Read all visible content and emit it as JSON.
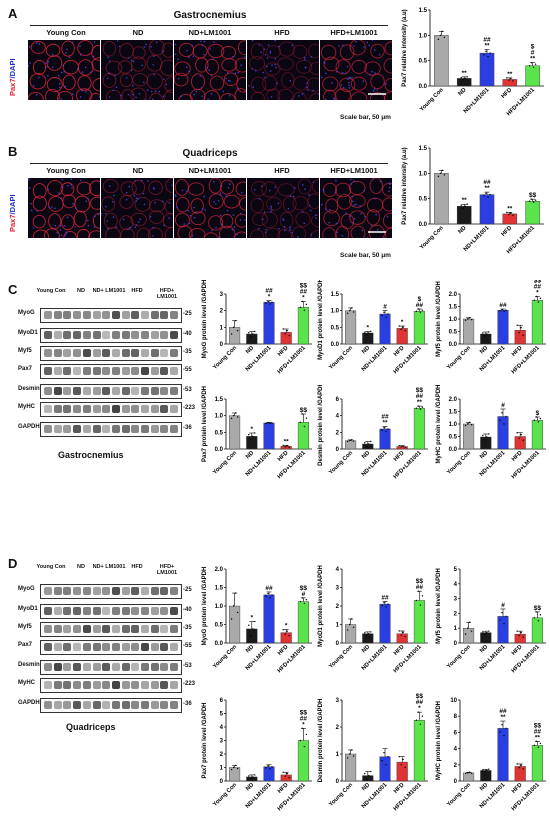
{
  "panels": {
    "A": {
      "letter": "A",
      "title": "Gastrocnemius",
      "stain": "Pax7/DAPI",
      "stain_red": "Pax7",
      "stain_blue": "DAPI",
      "scale": "Scale bar, 50 μm"
    },
    "B": {
      "letter": "B",
      "title": "Quadriceps",
      "stain": "Pax7/DAPI",
      "stain_red": "Pax7",
      "stain_blue": "DAPI",
      "scale": "Scale bar, 50 μm"
    },
    "C": {
      "letter": "C",
      "caption": "Gastrocnemius"
    },
    "D": {
      "letter": "D",
      "caption": "Quadriceps"
    }
  },
  "groups": [
    "Young Con",
    "ND",
    "ND+LM1001",
    "HFD",
    "HFD+LM1001"
  ],
  "blot": {
    "lanes": [
      "Young Con",
      "ND",
      "ND+ LM1001",
      "HFD",
      "HFD+ LM1001"
    ],
    "proteins": [
      "MyoG",
      "MyoD1",
      "Myf5",
      "Pax7",
      "Desmin",
      "MyHC",
      "GAPDH"
    ],
    "sizes": [
      "25",
      "40",
      "35",
      "55",
      "53",
      "223",
      "36"
    ]
  },
  "colors": {
    "young": "#a9a9a9",
    "nd": "#1a1a1a",
    "nd_lm": "#2b3fe0",
    "hfd": "#e03333",
    "hfd_lm": "#5be34b",
    "red_stain": "#e01b24",
    "blue_stain": "#2233cc"
  },
  "chart_data": [
    {
      "id": "A-pax7",
      "type": "bar",
      "categories": [
        "Young Con",
        "ND",
        "ND+LM1001",
        "HFD",
        "HFD+LM1001"
      ],
      "values": [
        1.0,
        0.15,
        0.65,
        0.13,
        0.4
      ],
      "errors": [
        0.08,
        0.03,
        0.07,
        0.03,
        0.06
      ],
      "ylabel": "Pax7 relative intensity (a.u)",
      "ylim": [
        0,
        1.5
      ],
      "yticks": [
        "0.0",
        "0.5",
        "1.0",
        "1.5"
      ],
      "annotations": [
        "",
        "**",
        "##|**",
        "**",
        "$|#|**"
      ]
    },
    {
      "id": "B-pax7",
      "type": "bar",
      "categories": [
        "Young Con",
        "ND",
        "ND+LM1001",
        "HFD",
        "HFD+LM1001"
      ],
      "values": [
        1.0,
        0.35,
        0.58,
        0.2,
        0.45
      ],
      "errors": [
        0.06,
        0.04,
        0.05,
        0.03,
        0.04
      ],
      "ylabel": "Pax7 relative intensity (a.u)",
      "ylim": [
        0,
        1.5
      ],
      "yticks": [
        "0.0",
        "0.5",
        "1.0",
        "1.5"
      ],
      "annotations": [
        "",
        "**",
        "##|**",
        "**",
        "$$"
      ]
    },
    {
      "id": "C-myog",
      "type": "bar",
      "categories": [
        "Young Con",
        "ND",
        "ND+LM1001",
        "HFD",
        "HFD+LM1001"
      ],
      "values": [
        1.0,
        0.6,
        2.5,
        0.7,
        2.2
      ],
      "errors": [
        0.4,
        0.15,
        0.1,
        0.2,
        0.35
      ],
      "ylabel": "MyoG protein level /GAPDH",
      "ylim": [
        0,
        3
      ],
      "yticks": [
        "0",
        "1",
        "2",
        "3"
      ],
      "annotations": [
        "",
        "",
        "##|*",
        "",
        "$$|##|*"
      ]
    },
    {
      "id": "C-myod1",
      "type": "bar",
      "categories": [
        "Young Con",
        "ND",
        "ND+LM1001",
        "HFD",
        "HFD+LM1001"
      ],
      "values": [
        1.0,
        0.33,
        0.9,
        0.47,
        0.98
      ],
      "errors": [
        0.08,
        0.05,
        0.1,
        0.07,
        0.07
      ],
      "ylabel": "MyoD1 protein level /GAPDH",
      "ylim": [
        0,
        1.5
      ],
      "yticks": [
        "0.0",
        "0.5",
        "1.0",
        "1.5"
      ],
      "annotations": [
        "",
        "*",
        "#",
        "*",
        "$|##"
      ]
    },
    {
      "id": "C-myf5",
      "type": "bar",
      "categories": [
        "Young Con",
        "ND",
        "ND+LM1001",
        "HFD",
        "HFD+LM1001"
      ],
      "values": [
        1.0,
        0.4,
        1.35,
        0.55,
        1.75
      ],
      "errors": [
        0.05,
        0.08,
        0.05,
        0.2,
        0.15
      ],
      "ylabel": "Myf5 protein level /GAPDH",
      "ylim": [
        0,
        2.0
      ],
      "yticks": [
        "0.0",
        "0.5",
        "1.0",
        "1.5",
        "2.0"
      ],
      "annotations": [
        "",
        "",
        "##",
        "",
        "$$|##|*"
      ]
    },
    {
      "id": "C-pax7",
      "type": "bar",
      "categories": [
        "Young Con",
        "ND",
        "ND+LM1001",
        "HFD",
        "HFD+LM1001"
      ],
      "values": [
        1.0,
        0.38,
        0.78,
        0.08,
        0.8
      ],
      "errors": [
        0.08,
        0.1,
        0.02,
        0.03,
        0.25
      ],
      "ylabel": "Pax7 protein level /GAPDH",
      "ylim": [
        0,
        1.5
      ],
      "yticks": [
        "0.0",
        "0.5",
        "1.0",
        "1.5"
      ],
      "annotations": [
        "",
        "*",
        "",
        "**",
        "$$"
      ]
    },
    {
      "id": "C-desmin",
      "type": "bar",
      "categories": [
        "Young Con",
        "ND",
        "ND+LM1001",
        "HFD",
        "HFD+LM1001"
      ],
      "values": [
        1.0,
        0.6,
        2.4,
        0.3,
        4.9
      ],
      "errors": [
        0.1,
        0.3,
        0.3,
        0.1,
        0.25
      ],
      "ylabel": "Desmin protein level /GAPDH",
      "ylim": [
        0,
        6
      ],
      "yticks": [
        "0",
        "2",
        "4",
        "6"
      ],
      "annotations": [
        "",
        "",
        "##|**",
        "",
        "$$|##|**"
      ]
    },
    {
      "id": "C-myhc",
      "type": "bar",
      "categories": [
        "Young Con",
        "ND",
        "ND+LM1001",
        "HFD",
        "HFD+LM1001"
      ],
      "values": [
        1.0,
        0.48,
        1.3,
        0.5,
        1.15
      ],
      "errors": [
        0.06,
        0.12,
        0.3,
        0.15,
        0.13
      ],
      "ylabel": "MyHC protein level /GAPDH",
      "ylim": [
        0,
        2.0
      ],
      "yticks": [
        "0.0",
        "0.5",
        "1.0",
        "1.5",
        "2.0"
      ],
      "annotations": [
        "",
        "",
        "#",
        "",
        "$"
      ]
    },
    {
      "id": "D-myog",
      "type": "bar",
      "categories": [
        "Young Con",
        "ND",
        "ND+LM1001",
        "HFD",
        "HFD+LM1001"
      ],
      "values": [
        1.0,
        0.38,
        1.3,
        0.28,
        1.12
      ],
      "errors": [
        0.35,
        0.2,
        0.08,
        0.08,
        0.1
      ],
      "ylabel": "MyoG protein level /GAPDH",
      "ylim": [
        0,
        2.0
      ],
      "yticks": [
        "0.0",
        "0.5",
        "1.0",
        "1.5",
        "2.0"
      ],
      "annotations": [
        "",
        "*",
        "##",
        "*",
        "$$|#"
      ]
    },
    {
      "id": "D-myod1",
      "type": "bar",
      "categories": [
        "Young Con",
        "ND",
        "ND+LM1001",
        "HFD",
        "HFD+LM1001"
      ],
      "values": [
        1.0,
        0.5,
        2.1,
        0.5,
        2.3
      ],
      "errors": [
        0.3,
        0.1,
        0.15,
        0.15,
        0.5
      ],
      "ylabel": "MyoD1 protein level /GAPDH",
      "ylim": [
        0,
        4
      ],
      "yticks": [
        "0",
        "1",
        "2",
        "3",
        "4"
      ],
      "annotations": [
        "",
        "",
        "##",
        "",
        "$$|##"
      ]
    },
    {
      "id": "D-myf5",
      "type": "bar",
      "categories": [
        "Young Con",
        "ND",
        "ND+LM1001",
        "HFD",
        "HFD+LM1001"
      ],
      "values": [
        1.0,
        0.7,
        1.8,
        0.6,
        1.7
      ],
      "errors": [
        0.4,
        0.1,
        0.5,
        0.2,
        0.4
      ],
      "ylabel": "Myf5 protein level /GAPDH",
      "ylim": [
        0,
        5
      ],
      "yticks": [
        "0",
        "1",
        "2",
        "3",
        "4",
        "5"
      ],
      "annotations": [
        "",
        "",
        "#",
        "",
        "$$"
      ]
    },
    {
      "id": "D-pax7",
      "type": "bar",
      "categories": [
        "Young Con",
        "ND",
        "ND+LM1001",
        "HFD",
        "HFD+LM1001"
      ],
      "values": [
        1.0,
        0.3,
        1.05,
        0.45,
        3.0
      ],
      "errors": [
        0.15,
        0.15,
        0.15,
        0.2,
        0.9
      ],
      "ylabel": "Pax7 protein level /GAPDH",
      "ylim": [
        0,
        6
      ],
      "yticks": [
        "0",
        "1",
        "2",
        "3",
        "4",
        "5",
        "6"
      ],
      "annotations": [
        "",
        "",
        "",
        "",
        "$$|##|*"
      ]
    },
    {
      "id": "D-desmin",
      "type": "bar",
      "categories": [
        "Young Con",
        "ND",
        "ND+LM1001",
        "HFD",
        "HFD+LM1001"
      ],
      "values": [
        1.0,
        0.2,
        0.9,
        0.7,
        2.25
      ],
      "errors": [
        0.15,
        0.15,
        0.3,
        0.2,
        0.3
      ],
      "ylabel": "Desmin protein level /GAPDH",
      "ylim": [
        0,
        3
      ],
      "yticks": [
        "0",
        "1",
        "2",
        "3"
      ],
      "annotations": [
        "",
        "",
        "",
        "",
        "$$|##|*"
      ]
    },
    {
      "id": "D-myhc",
      "type": "bar",
      "categories": [
        "Young Con",
        "ND",
        "ND+LM1001",
        "HFD",
        "HFD+LM1001"
      ],
      "values": [
        1.0,
        1.3,
        6.5,
        1.8,
        4.4
      ],
      "errors": [
        0.08,
        0.15,
        0.9,
        0.3,
        0.5
      ],
      "ylabel": "MyHC protein level /GAPDH",
      "ylim": [
        0,
        10
      ],
      "yticks": [
        "0",
        "2",
        "4",
        "6",
        "8",
        "10"
      ],
      "annotations": [
        "",
        "",
        "##|**",
        "",
        "$$|##|**"
      ]
    }
  ]
}
